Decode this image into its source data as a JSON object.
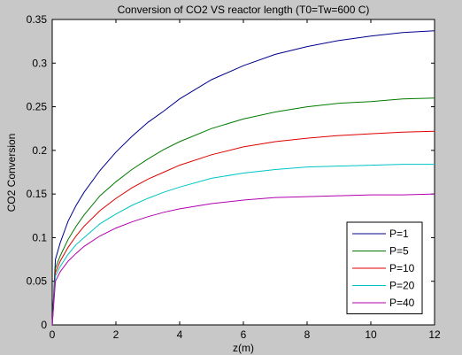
{
  "chart_data": {
    "type": "line",
    "title": "Conversion of CO2 VS reactor length (T0=Tw=600 C)",
    "xlabel": "z(m)",
    "ylabel": "CO2 Conversion",
    "xlim": [
      0,
      12
    ],
    "ylim": [
      0,
      0.35
    ],
    "xticks": [
      0,
      2,
      4,
      6,
      8,
      10,
      12
    ],
    "yticks": [
      0,
      0.05,
      0.1,
      0.15,
      0.2,
      0.25,
      0.3,
      0.35
    ],
    "grid": false,
    "legend_position": "bottom-right",
    "x": [
      0,
      0.1,
      0.25,
      0.5,
      0.75,
      1,
      1.5,
      2,
      2.5,
      3,
      3.5,
      4,
      5,
      6,
      7,
      8,
      9,
      10,
      11,
      12
    ],
    "series": [
      {
        "name": "P=1",
        "color": "#00008b",
        "values": [
          0,
          0.075,
          0.094,
          0.119,
          0.137,
          0.152,
          0.177,
          0.198,
          0.216,
          0.232,
          0.245,
          0.259,
          0.281,
          0.297,
          0.31,
          0.319,
          0.326,
          0.331,
          0.335,
          0.337
        ]
      },
      {
        "name": "P=5",
        "color": "#007a00",
        "values": [
          0,
          0.065,
          0.079,
          0.098,
          0.113,
          0.126,
          0.148,
          0.164,
          0.178,
          0.19,
          0.201,
          0.21,
          0.225,
          0.236,
          0.244,
          0.25,
          0.254,
          0.256,
          0.259,
          0.26
        ]
      },
      {
        "name": "P=10",
        "color": "#e00000",
        "values": [
          0,
          0.06,
          0.073,
          0.089,
          0.102,
          0.113,
          0.131,
          0.145,
          0.157,
          0.167,
          0.175,
          0.183,
          0.195,
          0.204,
          0.21,
          0.214,
          0.217,
          0.219,
          0.221,
          0.222
        ]
      },
      {
        "name": "P=20",
        "color": "#00c4c4",
        "values": [
          0,
          0.056,
          0.067,
          0.081,
          0.092,
          0.1,
          0.116,
          0.127,
          0.137,
          0.145,
          0.152,
          0.158,
          0.168,
          0.174,
          0.178,
          0.181,
          0.182,
          0.183,
          0.184,
          0.184
        ]
      },
      {
        "name": "P=40",
        "color": "#b000b0",
        "values": [
          0,
          0.05,
          0.061,
          0.073,
          0.082,
          0.09,
          0.102,
          0.111,
          0.118,
          0.124,
          0.129,
          0.133,
          0.139,
          0.143,
          0.146,
          0.147,
          0.148,
          0.149,
          0.149,
          0.15
        ]
      }
    ]
  }
}
